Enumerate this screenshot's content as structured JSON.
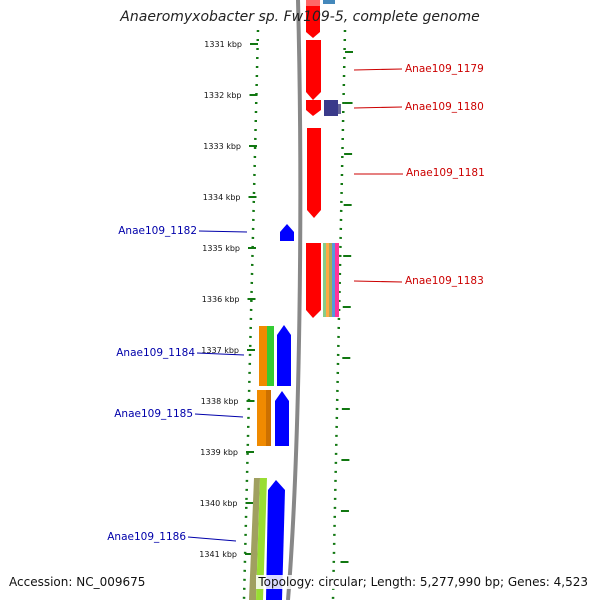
{
  "title": "Anaeromyxobacter sp. Fw109-5, complete genome",
  "footer": {
    "accession": "Accession: NC_009675",
    "summary": "Topology: circular; Length: 5,277,990 bp; Genes: 4,523"
  },
  "colors": {
    "forward_gene": "#ff0000",
    "reverse_gene": "#0000ff",
    "forward_label": "#cc0000",
    "reverse_label": "#0000aa",
    "tick": "#117711",
    "backbone": "#888888",
    "dark_feature": "#3a3a8a",
    "orange_feature": "#f08a00",
    "green_feature": "#33cc33",
    "lime_feature": "#99dd33",
    "olive_feature": "#a0a060",
    "pink_feature": "#ff3399",
    "steel_feature": "#4488bb"
  },
  "ticks": [
    "1331 kbp",
    "1332 kbp",
    "1333 kbp",
    "1334 kbp",
    "1335 kbp",
    "1336 kbp",
    "1337 kbp",
    "1338 kbp",
    "1339 kbp",
    "1340 kbp",
    "1341 kbp"
  ],
  "labels": {
    "forward": [
      "Anae109_1179",
      "Anae109_1180",
      "Anae109_1181",
      "Anae109_1183"
    ],
    "reverse": [
      "Anae109_1182",
      "Anae109_1184",
      "Anae109_1185",
      "Anae109_1186"
    ]
  }
}
